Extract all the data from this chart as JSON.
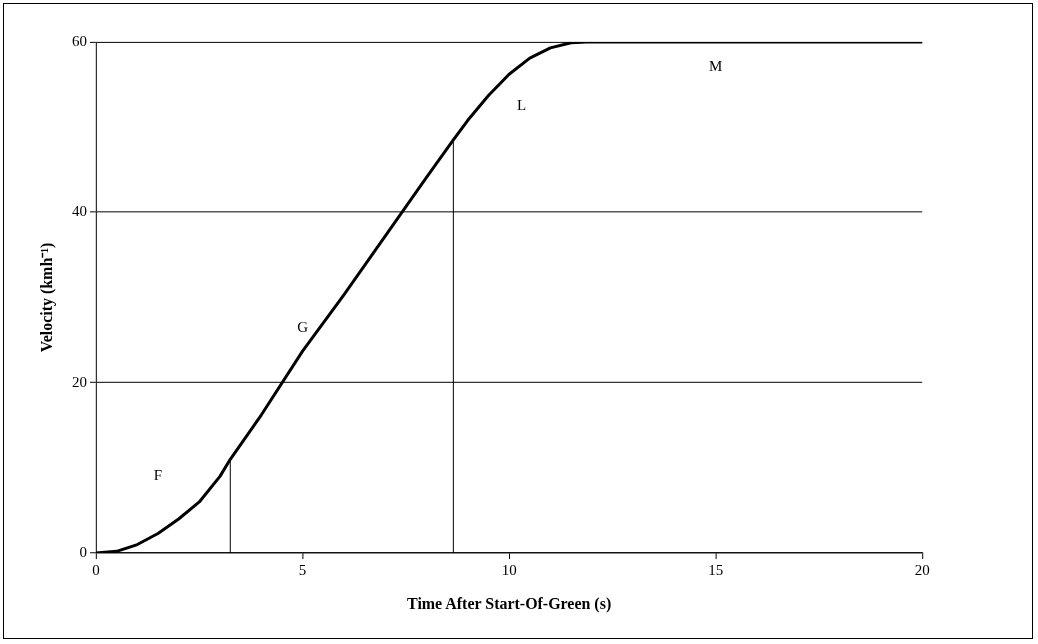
{
  "chart_data": {
    "type": "line",
    "xlabel": "Time After Start-Of-Green (s)",
    "ylabel": "Velocity (kmh⁻¹)",
    "xlim": [
      0,
      20
    ],
    "xticks": [
      0,
      5,
      10,
      15,
      20
    ],
    "ylim": [
      0,
      60
    ],
    "yticks": [
      0,
      20,
      40,
      60
    ],
    "grid": "y",
    "legend": false,
    "marker": "none",
    "line_style": "solid",
    "series": [
      {
        "color": "#000000",
        "x": [
          0,
          0.5,
          1,
          1.5,
          2,
          2.5,
          3,
          3.25,
          4,
          5,
          6,
          7,
          8,
          8.65,
          9,
          9.5,
          10,
          10.5,
          11,
          11.5,
          12,
          20
        ],
        "values": [
          0,
          0.2,
          1,
          2.3,
          4,
          6,
          9,
          11,
          16.2,
          23.7,
          30.3,
          37.2,
          44.1,
          48.5,
          50.8,
          53.7,
          56.2,
          58.1,
          59.3,
          59.9,
          60,
          60
        ]
      },
      {
        "color": "#000000",
        "x": [
          3.25,
          3.25
        ],
        "values": [
          0,
          11
        ]
      },
      {
        "color": "#000000",
        "x": [
          8.65,
          8.65
        ],
        "values": [
          0,
          48.5
        ]
      }
    ],
    "annotations": [
      "F",
      "G",
      "L",
      "M"
    ]
  }
}
